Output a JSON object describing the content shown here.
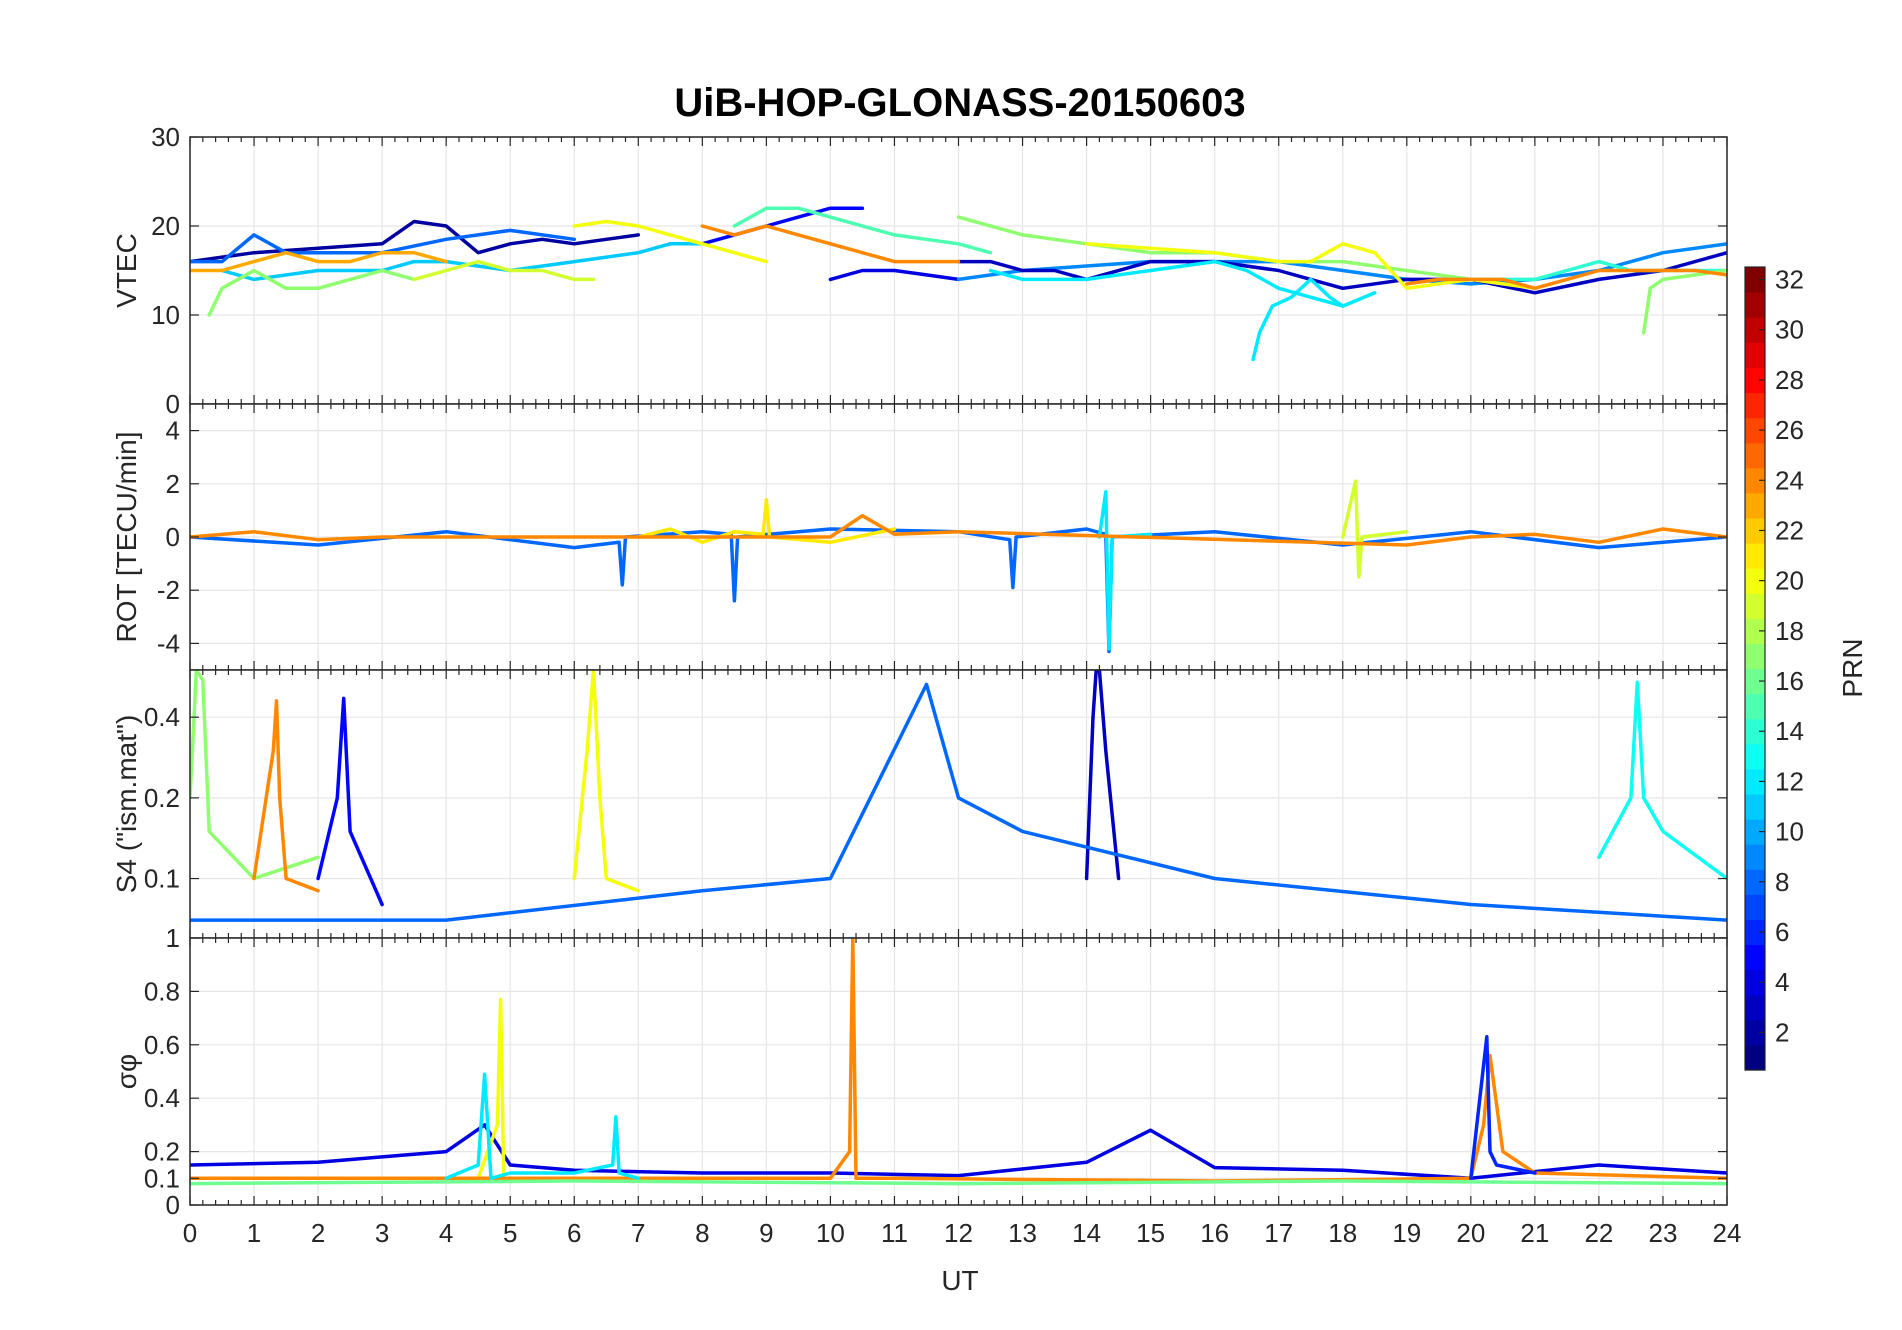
{
  "chart_data": {
    "type": "line",
    "title": "UiB-HOP-GLONASS-20150603",
    "xlabel": "UT",
    "xlim": [
      0,
      24
    ],
    "xticks": [
      0,
      1,
      2,
      3,
      4,
      5,
      6,
      7,
      8,
      9,
      10,
      11,
      12,
      13,
      14,
      15,
      16,
      17,
      18,
      19,
      20,
      21,
      22,
      23,
      24
    ],
    "grid": true,
    "colorbar": {
      "label": "PRN",
      "range": [
        1,
        32
      ],
      "colormap": "jet",
      "ticks": [
        2,
        4,
        6,
        8,
        10,
        12,
        14,
        16,
        18,
        20,
        22,
        24,
        26,
        28,
        30,
        32
      ]
    },
    "panels": [
      {
        "ylabel": "VTEC",
        "ylim": [
          0,
          30
        ],
        "yticks": [
          0,
          10,
          20,
          30
        ],
        "series": [
          {
            "prn": 2,
            "x": [
              0,
              1,
              2,
              3,
              3.5,
              4,
              4.5,
              5,
              5.5,
              6,
              6.5,
              7
            ],
            "y": [
              16,
              17,
              17.5,
              18,
              20.5,
              20,
              17,
              18,
              18.5,
              18,
              18.5,
              19
            ]
          },
          {
            "prn": 5,
            "x": [
              7.5,
              8,
              8.5,
              9,
              9.5,
              10,
              10.5
            ],
            "y": [
              18,
              18,
              19,
              20,
              21,
              22,
              22
            ]
          },
          {
            "prn": 4,
            "x": [
              10,
              10.5,
              11,
              11.5,
              12
            ],
            "y": [
              14,
              15,
              15,
              14.5,
              14
            ]
          },
          {
            "prn": 8,
            "x": [
              0,
              0.5,
              1,
              1.5,
              2,
              3,
              4,
              5,
              6
            ],
            "y": [
              16,
              16,
              19,
              17,
              17,
              17,
              18.5,
              19.5,
              18.5
            ]
          },
          {
            "prn": 9,
            "x": [
              12,
              13,
              14,
              15,
              16,
              17,
              18,
              19,
              20,
              21,
              22,
              23,
              24
            ],
            "y": [
              14,
              15,
              15.5,
              16,
              16,
              16,
              15,
              14,
              13.5,
              14,
              15,
              17,
              18
            ]
          },
          {
            "prn": 3,
            "x": [
              12,
              12.5,
              13,
              13.5,
              14,
              15,
              16,
              17,
              17.5,
              18,
              19,
              20,
              21,
              22,
              23,
              24
            ],
            "y": [
              16,
              16,
              15,
              15,
              14,
              16,
              16,
              15,
              14,
              13,
              14,
              14,
              12.5,
              14,
              15,
              17
            ]
          },
          {
            "prn": 11,
            "x": [
              0.5,
              1,
              2,
              3,
              3.5,
              4,
              5,
              6,
              7,
              7.5,
              8
            ],
            "y": [
              15,
              14,
              15,
              15,
              16,
              16,
              15,
              16,
              17,
              18,
              18
            ]
          },
          {
            "prn": 12,
            "x": [
              12.5,
              13,
              14,
              15,
              16,
              16.5,
              17,
              17.5,
              18,
              18.5
            ],
            "y": [
              15,
              14,
              14,
              15,
              16,
              15,
              13,
              12,
              11,
              12.5
            ]
          },
          {
            "prn": 12,
            "x": [
              16.6,
              16.7,
              16.9,
              17.2,
              17.5,
              17.8,
              18
            ],
            "y": [
              5,
              8,
              11,
              12,
              14,
              12,
              11
            ]
          },
          {
            "prn": 15,
            "x": [
              8.5,
              9,
              9.5,
              10,
              11,
              12,
              12.5
            ],
            "y": [
              20,
              22,
              22,
              21,
              19,
              18,
              17
            ]
          },
          {
            "prn": 14,
            "x": [
              20,
              21,
              21.5,
              22,
              22.5,
              23,
              24
            ],
            "y": [
              14,
              14,
              15,
              16,
              15,
              15,
              15
            ]
          },
          {
            "prn": 17,
            "x": [
              0.3,
              0.5,
              1,
              1.5,
              2,
              2.5,
              3,
              3.5
            ],
            "y": [
              10,
              13,
              15,
              13,
              13,
              14,
              15,
              14
            ]
          },
          {
            "prn": 17,
            "x": [
              22.7,
              22.8,
              23,
              24
            ],
            "y": [
              8,
              13,
              14,
              15
            ]
          },
          {
            "prn": 17,
            "x": [
              12,
              13,
              14,
              15,
              16,
              17,
              18,
              19,
              20
            ],
            "y": [
              21,
              19,
              18,
              17,
              17,
              16,
              16,
              15,
              14
            ]
          },
          {
            "prn": 19,
            "x": [
              3.5,
              4,
              4.5,
              5,
              5.5,
              6,
              6.3
            ],
            "y": [
              14,
              15,
              16,
              15,
              15,
              14,
              14
            ]
          },
          {
            "prn": 20,
            "x": [
              6,
              6.5,
              7,
              7.5,
              8,
              8.5,
              9
            ],
            "y": [
              20,
              20.5,
              20,
              19,
              18,
              17,
              16
            ]
          },
          {
            "prn": 20,
            "x": [
              14,
              15,
              16,
              17,
              17.5,
              18,
              18.5,
              19,
              20,
              21
            ],
            "y": [
              18,
              17.5,
              17,
              16,
              16,
              18,
              17,
              13,
              14,
              13
            ]
          },
          {
            "prn": 23,
            "x": [
              0,
              0.5,
              1,
              1.5,
              2,
              2.5,
              3,
              3.5,
              4
            ],
            "y": [
              15,
              15,
              16,
              17,
              16,
              16,
              17,
              17,
              16
            ]
          },
          {
            "prn": 24,
            "x": [
              8,
              8.5,
              9,
              9.5,
              10,
              10.5,
              11,
              11.5,
              12
            ],
            "y": [
              20,
              19,
              20,
              19,
              18,
              17,
              16,
              16,
              16
            ]
          },
          {
            "prn": 24,
            "x": [
              19,
              19.5,
              20,
              20.5,
              21,
              21.5,
              22,
              22.5,
              23,
              23.5,
              24
            ],
            "y": [
              13.5,
              14,
              14,
              14,
              13,
              14,
              15,
              15,
              15,
              15,
              14.5
            ]
          }
        ]
      },
      {
        "ylabel": "ROT [TECU/min]",
        "ylim": [
          -5,
          5
        ],
        "yticks": [
          -4,
          -2,
          0,
          2,
          4
        ],
        "series": [
          {
            "prn": 8,
            "x": [
              0,
              2,
              4,
              6,
              6.7,
              6.75,
              6.8,
              8,
              8.45,
              8.5,
              8.55,
              10,
              12,
              12.8,
              12.85,
              12.9,
              14,
              14.3,
              14.35,
              14.4,
              16,
              18,
              20,
              22,
              24
            ],
            "y": [
              0,
              -0.3,
              0.2,
              -0.4,
              -0.2,
              -1.8,
              0,
              0.2,
              0.1,
              -2.4,
              0,
              0.3,
              0.2,
              -0.1,
              -1.9,
              0,
              0.3,
              0.1,
              -4.3,
              0,
              0.2,
              -0.3,
              0.2,
              -0.4,
              0
            ]
          },
          {
            "prn": 12,
            "x": [
              14.2,
              14.3,
              14.35,
              14.4,
              15
            ],
            "y": [
              0,
              1.7,
              -4.2,
              0,
              0.1
            ]
          },
          {
            "prn": 19,
            "x": [
              18,
              18.2,
              18.25,
              18.3,
              19
            ],
            "y": [
              0,
              2.1,
              -1.5,
              0,
              0.2
            ]
          },
          {
            "prn": 21,
            "x": [
              7,
              7.5,
              8,
              8.5,
              8.95,
              9,
              9.05,
              10,
              11
            ],
            "y": [
              0,
              0.3,
              -0.2,
              0.2,
              0.1,
              1.4,
              0,
              -0.2,
              0.3
            ]
          },
          {
            "prn": 24,
            "x": [
              0,
              1,
              2,
              3,
              10,
              10.5,
              11,
              12,
              19,
              20,
              21,
              22,
              23,
              24
            ],
            "y": [
              0,
              0.2,
              -0.1,
              0,
              0,
              0.8,
              0.1,
              0.2,
              -0.3,
              0,
              0.1,
              -0.2,
              0.3,
              0
            ]
          }
        ]
      },
      {
        "ylabel": "S4 (\"ism.mat\")",
        "ylim": [
          0.06,
          0.6
        ],
        "yticks": [
          0.1,
          0.2,
          0.4
        ],
        "scale": "log",
        "series": [
          {
            "prn": 17,
            "x": [
              0,
              0.1,
              0.2,
              0.3,
              1,
              2
            ],
            "y": [
              0.2,
              0.6,
              0.55,
              0.15,
              0.1,
              0.12
            ]
          },
          {
            "prn": 24,
            "x": [
              1,
              1.3,
              1.35,
              1.4,
              1.5,
              2
            ],
            "y": [
              0.1,
              0.3,
              0.46,
              0.2,
              0.1,
              0.09
            ]
          },
          {
            "prn": 5,
            "x": [
              2,
              2.3,
              2.4,
              2.5,
              3
            ],
            "y": [
              0.1,
              0.2,
              0.47,
              0.15,
              0.08
            ]
          },
          {
            "prn": 20,
            "x": [
              6,
              6.2,
              6.3,
              6.4,
              6.5,
              7
            ],
            "y": [
              0.1,
              0.3,
              0.6,
              0.2,
              0.1,
              0.09
            ]
          },
          {
            "prn": 3,
            "x": [
              14,
              14.1,
              14.15,
              14.2,
              14.3,
              14.5
            ],
            "y": [
              0.1,
              0.4,
              0.6,
              0.6,
              0.3,
              0.1
            ]
          },
          {
            "prn": 13,
            "x": [
              22,
              22.5,
              22.6,
              22.7,
              23,
              24
            ],
            "y": [
              0.12,
              0.2,
              0.54,
              0.2,
              0.15,
              0.1
            ]
          },
          {
            "prn": 8,
            "x": [
              0,
              4,
              8,
              10,
              11.5,
              12,
              13,
              16,
              20,
              24
            ],
            "y": [
              0.07,
              0.07,
              0.09,
              0.1,
              0.53,
              0.2,
              0.15,
              0.1,
              0.08,
              0.07
            ]
          }
        ]
      },
      {
        "ylabel": "σφ",
        "ylim": [
          0,
          1
        ],
        "yticks": [
          0,
          0.1,
          0.2,
          0.4,
          0.6,
          0.8,
          1
        ],
        "series": [
          {
            "prn": 4,
            "x": [
              0,
              2,
              3,
              4,
              4.6,
              5,
              6,
              8,
              10,
              12,
              14,
              15,
              16,
              18,
              20,
              22,
              24
            ],
            "y": [
              0.15,
              0.16,
              0.18,
              0.2,
              0.3,
              0.15,
              0.13,
              0.12,
              0.12,
              0.11,
              0.16,
              0.28,
              0.14,
              0.13,
              0.1,
              0.15,
              0.12
            ]
          },
          {
            "prn": 20,
            "x": [
              4.5,
              4.8,
              4.85,
              4.9,
              5.2
            ],
            "y": [
              0.1,
              0.3,
              0.77,
              0.1,
              0.1
            ]
          },
          {
            "prn": 24,
            "x": [
              0,
              4,
              8,
              10,
              10.3,
              10.35,
              10.4,
              10.5,
              11,
              16,
              20,
              20.2,
              20.3,
              20.5,
              21,
              24
            ],
            "y": [
              0.1,
              0.1,
              0.1,
              0.1,
              0.2,
              1,
              0.1,
              0.1,
              0.1,
              0.09,
              0.1,
              0.3,
              0.56,
              0.2,
              0.12,
              0.1
            ]
          },
          {
            "prn": 6,
            "x": [
              20,
              20.25,
              20.3,
              20.4,
              21
            ],
            "y": [
              0.1,
              0.63,
              0.2,
              0.15,
              0.12
            ]
          },
          {
            "prn": 12,
            "x": [
              4,
              4.5,
              4.6,
              4.7,
              5,
              6,
              6.6,
              6.65,
              6.7,
              7
            ],
            "y": [
              0.1,
              0.15,
              0.49,
              0.1,
              0.12,
              0.12,
              0.15,
              0.33,
              0.12,
              0.1
            ]
          },
          {
            "prn": 16,
            "x": [
              0,
              6,
              12,
              18,
              24
            ],
            "y": [
              0.08,
              0.09,
              0.08,
              0.09,
              0.08
            ]
          }
        ]
      }
    ]
  }
}
